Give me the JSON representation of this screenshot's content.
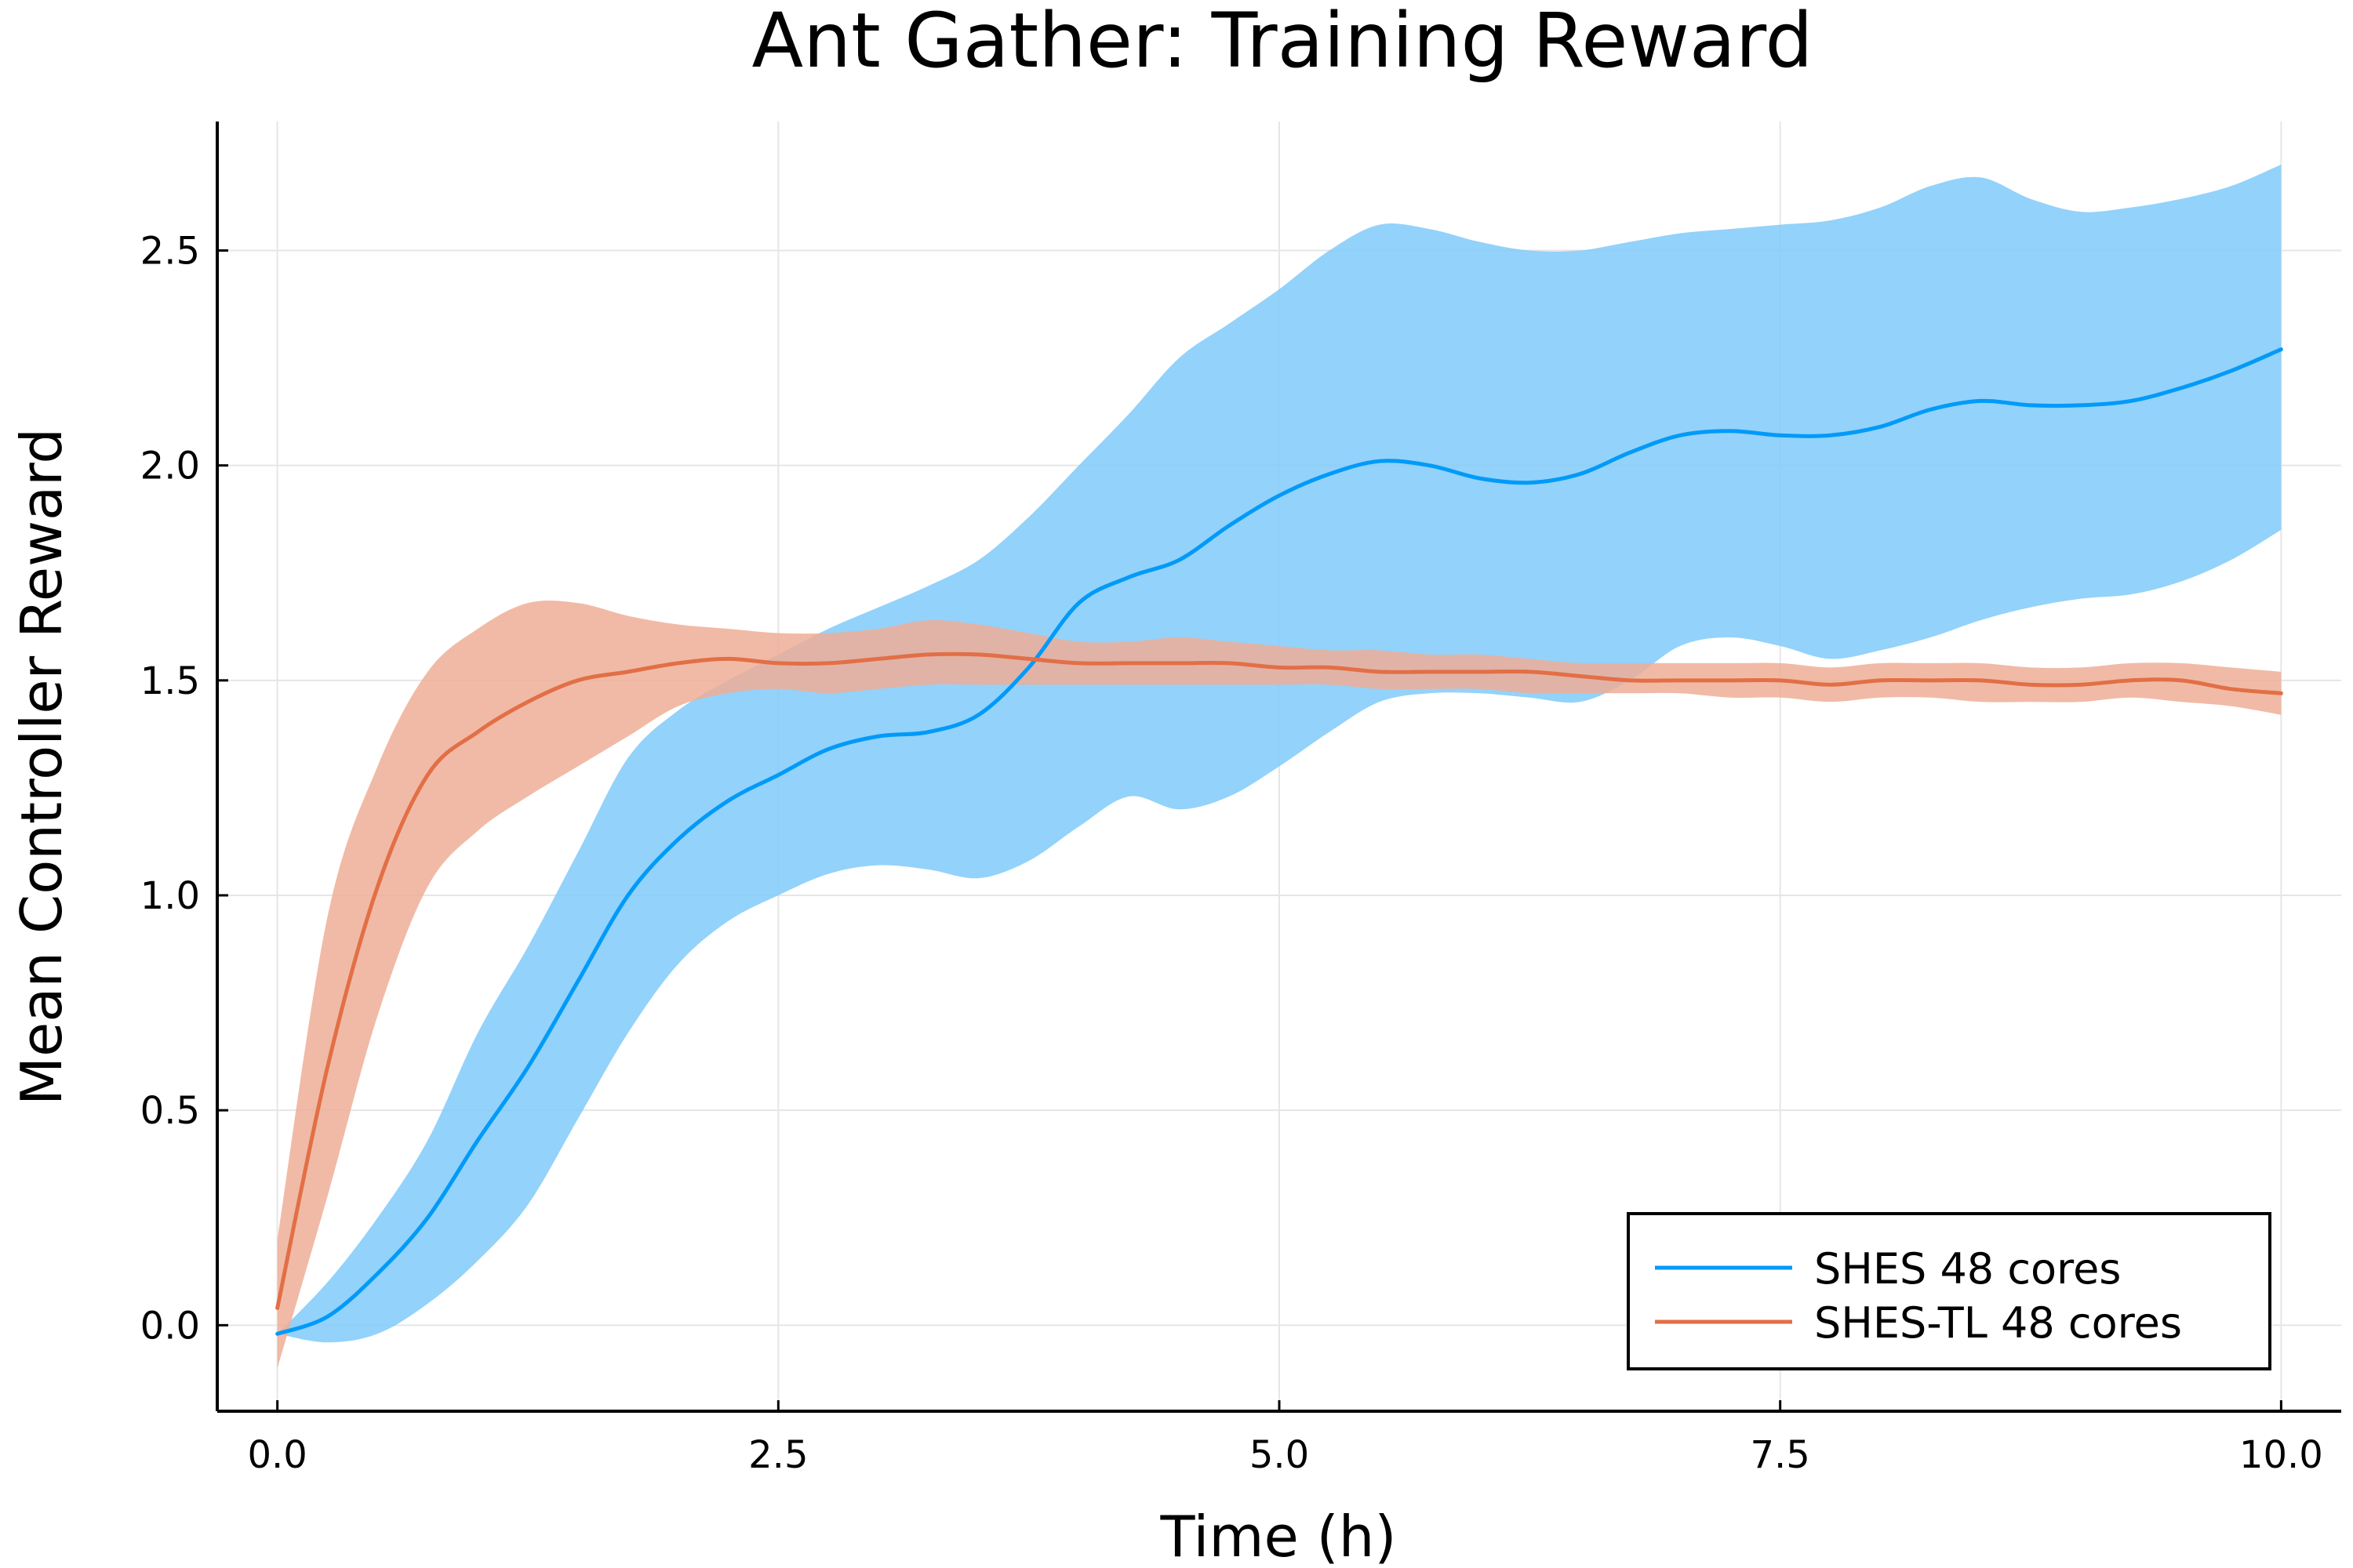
{
  "chart_data": {
    "type": "line",
    "title": "Ant Gather: Training Reward",
    "xlabel": "Time (h)",
    "ylabel": "Mean Controller Reward",
    "xlim": [
      -0.3,
      10.3
    ],
    "ylim": [
      -0.2,
      2.8
    ],
    "xticks": [
      0,
      2.5,
      5,
      7.5,
      10
    ],
    "xtick_labels": [
      "0.0",
      "2.5",
      "5.0",
      "7.5",
      "10.0"
    ],
    "yticks": [
      0,
      0.5,
      1,
      1.5,
      2,
      2.5
    ],
    "ytick_labels": [
      "0.0",
      "0.5",
      "1.0",
      "1.5",
      "2.0",
      "2.5"
    ],
    "grid": true,
    "legend_position": "bottom-right",
    "series": [
      {
        "name": "SHES 48 cores",
        "color": "#009af9",
        "band_color": "#80caf9",
        "x": [
          0,
          0.25,
          0.5,
          0.75,
          1,
          1.25,
          1.5,
          1.75,
          2,
          2.25,
          2.5,
          2.75,
          3,
          3.25,
          3.5,
          3.75,
          4,
          4.25,
          4.5,
          4.75,
          5,
          5.25,
          5.5,
          5.75,
          6,
          6.25,
          6.5,
          6.75,
          7,
          7.25,
          7.5,
          7.75,
          8,
          8.25,
          8.5,
          8.75,
          9,
          9.25,
          9.5,
          9.75,
          10
        ],
        "mean": [
          -0.02,
          0.02,
          0.12,
          0.25,
          0.43,
          0.6,
          0.8,
          1.0,
          1.13,
          1.22,
          1.28,
          1.34,
          1.37,
          1.38,
          1.42,
          1.53,
          1.68,
          1.74,
          1.78,
          1.86,
          1.93,
          1.98,
          2.01,
          2.0,
          1.97,
          1.96,
          1.98,
          2.03,
          2.07,
          2.08,
          2.07,
          2.07,
          2.09,
          2.13,
          2.15,
          2.14,
          2.14,
          2.15,
          2.18,
          2.22,
          2.27
        ],
        "upper": [
          -0.02,
          0.1,
          0.25,
          0.43,
          0.68,
          0.88,
          1.1,
          1.32,
          1.43,
          1.5,
          1.56,
          1.62,
          1.67,
          1.72,
          1.78,
          1.88,
          2.0,
          2.12,
          2.25,
          2.33,
          2.41,
          2.5,
          2.56,
          2.55,
          2.52,
          2.5,
          2.5,
          2.52,
          2.54,
          2.55,
          2.56,
          2.57,
          2.6,
          2.65,
          2.67,
          2.62,
          2.59,
          2.6,
          2.62,
          2.65,
          2.7
        ],
        "lower": [
          -0.02,
          -0.04,
          -0.02,
          0.05,
          0.15,
          0.28,
          0.48,
          0.68,
          0.84,
          0.94,
          1.0,
          1.05,
          1.07,
          1.06,
          1.04,
          1.08,
          1.16,
          1.23,
          1.2,
          1.23,
          1.3,
          1.38,
          1.45,
          1.47,
          1.47,
          1.46,
          1.45,
          1.5,
          1.58,
          1.6,
          1.58,
          1.55,
          1.57,
          1.6,
          1.64,
          1.67,
          1.69,
          1.7,
          1.73,
          1.78,
          1.85
        ]
      },
      {
        "name": "SHES-TL 48 cores",
        "color": "#e26f46",
        "band_color": "#efae97",
        "x": [
          0,
          0.25,
          0.5,
          0.75,
          1,
          1.25,
          1.5,
          1.75,
          2,
          2.25,
          2.5,
          2.75,
          3,
          3.25,
          3.5,
          3.75,
          4,
          4.25,
          4.5,
          4.75,
          5,
          5.25,
          5.5,
          5.75,
          6,
          6.25,
          6.5,
          6.75,
          7,
          7.25,
          7.5,
          7.75,
          8,
          8.25,
          8.5,
          8.75,
          9,
          9.25,
          9.5,
          9.75,
          10
        ],
        "mean": [
          0.04,
          0.6,
          1.02,
          1.28,
          1.38,
          1.45,
          1.5,
          1.52,
          1.54,
          1.55,
          1.54,
          1.54,
          1.55,
          1.56,
          1.56,
          1.55,
          1.54,
          1.54,
          1.54,
          1.54,
          1.53,
          1.53,
          1.52,
          1.52,
          1.52,
          1.52,
          1.51,
          1.5,
          1.5,
          1.5,
          1.5,
          1.49,
          1.5,
          1.5,
          1.5,
          1.49,
          1.49,
          1.5,
          1.5,
          1.48,
          1.47
        ],
        "upper": [
          0.2,
          0.95,
          1.3,
          1.52,
          1.62,
          1.68,
          1.68,
          1.65,
          1.63,
          1.62,
          1.61,
          1.61,
          1.62,
          1.64,
          1.63,
          1.61,
          1.59,
          1.59,
          1.6,
          1.59,
          1.58,
          1.57,
          1.57,
          1.56,
          1.56,
          1.55,
          1.54,
          1.54,
          1.54,
          1.54,
          1.54,
          1.53,
          1.54,
          1.54,
          1.54,
          1.53,
          1.53,
          1.54,
          1.54,
          1.53,
          1.52
        ],
        "lower": [
          -0.1,
          0.3,
          0.72,
          1.02,
          1.15,
          1.23,
          1.3,
          1.37,
          1.44,
          1.47,
          1.48,
          1.47,
          1.48,
          1.49,
          1.49,
          1.49,
          1.49,
          1.49,
          1.49,
          1.49,
          1.49,
          1.49,
          1.48,
          1.48,
          1.48,
          1.47,
          1.47,
          1.47,
          1.47,
          1.46,
          1.46,
          1.45,
          1.46,
          1.46,
          1.45,
          1.45,
          1.45,
          1.46,
          1.45,
          1.44,
          1.42
        ]
      }
    ]
  }
}
